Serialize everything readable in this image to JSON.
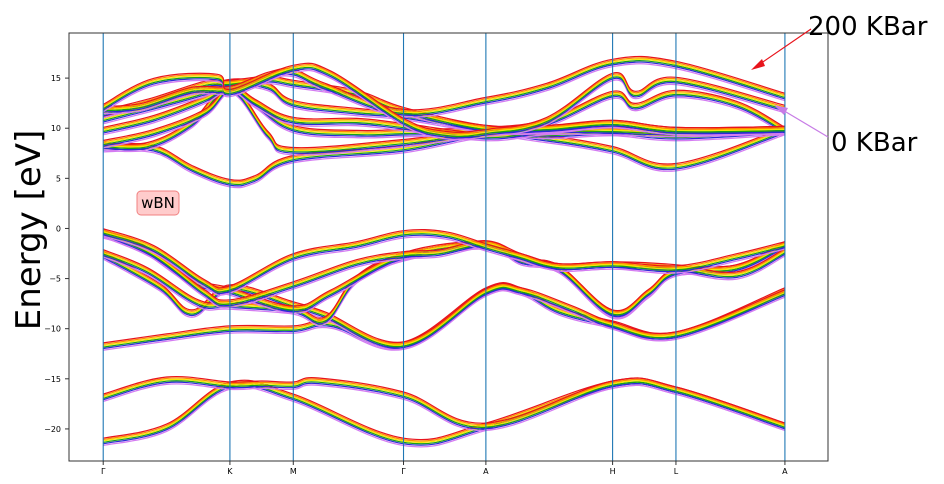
{
  "chart_data": {
    "type": "line",
    "title": "",
    "ylabel": "Energy [eV]",
    "xlabel": "",
    "ylim": [
      -23.2,
      19.5
    ],
    "xlim": [
      -0.27,
      5.72
    ],
    "yticks": [
      -20,
      -15,
      -10,
      -5,
      0,
      5,
      10,
      15
    ],
    "ytick_labels": [
      "−20",
      "−15",
      "−10",
      "−5",
      "0",
      "5",
      "10",
      "15"
    ],
    "xticks": [
      0,
      1,
      1.5,
      2.37,
      3.02,
      4.02,
      4.52,
      5.38
    ],
    "xtick_labels": [
      "Γ",
      "K",
      "M",
      "Γ",
      "A",
      "H",
      "L",
      "A"
    ],
    "vertical_lines_color": "#1f77b4",
    "inset_label": "wBN",
    "annotations": [
      {
        "text": "200 KBar",
        "color": "#e8141c"
      },
      {
        "text": "0 KBar",
        "color": "#c77ce6"
      }
    ],
    "series_colors": [
      "#d47cf2",
      "#2b2bd6",
      "#18a018",
      "#f2e800",
      "#ff8c00",
      "#e8141c"
    ],
    "series": [
      {
        "name": "0 KBar",
        "pressure_kbar": 0,
        "note": "lowest/outermost curve set"
      },
      {
        "name": "200 KBar",
        "pressure_kbar": 200,
        "note": "highest curve set"
      }
    ],
    "bands": [
      [
        [
          0,
          -21.2
        ],
        [
          0.5,
          -19.8
        ],
        [
          1,
          -15.6
        ],
        [
          1.5,
          -16.8
        ],
        [
          2.37,
          -21.2
        ],
        [
          3.02,
          -19.7
        ],
        [
          4.02,
          -15.5
        ],
        [
          4.52,
          -16.1
        ],
        [
          5.38,
          -19.7
        ]
      ],
      [
        [
          0,
          -16.8
        ],
        [
          0.5,
          -15.1
        ],
        [
          1,
          -15.6
        ],
        [
          1.25,
          -15.5
        ],
        [
          1.5,
          -15.6
        ],
        [
          1.7,
          -15.2
        ],
        [
          2.37,
          -16.6
        ],
        [
          3.02,
          -19.7
        ],
        [
          4.02,
          -15.5
        ],
        [
          4.52,
          -16.1
        ],
        [
          5.38,
          -19.7
        ]
      ],
      [
        [
          0,
          -11.7
        ],
        [
          0.5,
          -10.8
        ],
        [
          1,
          -10.0
        ],
        [
          1.5,
          -10.0
        ],
        [
          1.8,
          -9.5
        ],
        [
          2.37,
          -11.6
        ],
        [
          3.02,
          -6.2
        ],
        [
          3.3,
          -6.2
        ],
        [
          3.6,
          -8.2
        ],
        [
          4.02,
          -9.5
        ],
        [
          4.52,
          -10.6
        ],
        [
          5.38,
          -6.2
        ]
      ],
      [
        [
          0,
          -2.6
        ],
        [
          0.45,
          -5.8
        ],
        [
          0.7,
          -8.4
        ],
        [
          1,
          -5.9
        ],
        [
          1.5,
          -7.6
        ],
        [
          1.75,
          -8.6
        ],
        [
          2.37,
          -11.6
        ],
        [
          3.02,
          -6.3
        ],
        [
          3.3,
          -6.2
        ],
        [
          3.7,
          -8.0
        ],
        [
          4.02,
          -9.6
        ],
        [
          4.52,
          -10.6
        ],
        [
          5.38,
          -6.4
        ]
      ],
      [
        [
          0,
          -2.4
        ],
        [
          0.35,
          -4.2
        ],
        [
          0.75,
          -7.4
        ],
        [
          1,
          -7.6
        ],
        [
          1.5,
          -8.1
        ],
        [
          1.75,
          -9.1
        ],
        [
          2.0,
          -5.0
        ],
        [
          2.37,
          -2.8
        ],
        [
          3.02,
          -1.6
        ],
        [
          3.3,
          -3.2
        ],
        [
          3.6,
          -4.0
        ],
        [
          4.02,
          -8.5
        ],
        [
          4.3,
          -6.5
        ],
        [
          4.52,
          -4.3
        ],
        [
          5.0,
          -3.9
        ],
        [
          5.38,
          -1.6
        ]
      ],
      [
        [
          0,
          -0.5
        ],
        [
          0.3,
          -1.8
        ],
        [
          0.7,
          -5.2
        ],
        [
          1,
          -6.2
        ],
        [
          1.5,
          -8.0
        ],
        [
          1.8,
          -6.4
        ],
        [
          2.37,
          -2.7
        ],
        [
          3.02,
          -1.6
        ],
        [
          3.3,
          -3.2
        ],
        [
          3.6,
          -4.0
        ],
        [
          4.02,
          -8.4
        ],
        [
          4.3,
          -6.4
        ],
        [
          4.52,
          -4.3
        ],
        [
          5.0,
          -3.9
        ],
        [
          5.38,
          -1.6
        ]
      ],
      [
        [
          0,
          -0.4
        ],
        [
          0.4,
          -2.6
        ],
        [
          0.8,
          -6.4
        ],
        [
          1,
          -7.4
        ],
        [
          1.5,
          -5.6
        ],
        [
          2.0,
          -3.4
        ],
        [
          2.37,
          -2.6
        ],
        [
          2.65,
          -2.4
        ],
        [
          3.02,
          -1.5
        ],
        [
          3.3,
          -2.8
        ],
        [
          3.6,
          -3.8
        ],
        [
          4.02,
          -3.6
        ],
        [
          4.52,
          -3.9
        ],
        [
          5.0,
          -4.6
        ],
        [
          5.38,
          -2.3
        ]
      ],
      [
        [
          0,
          -0.3
        ],
        [
          0.4,
          -2.0
        ],
        [
          0.8,
          -5.4
        ],
        [
          1,
          -6.0
        ],
        [
          1.5,
          -2.8
        ],
        [
          2.0,
          -1.6
        ],
        [
          2.37,
          -0.5
        ],
        [
          2.7,
          -0.6
        ],
        [
          3.02,
          -1.8
        ],
        [
          3.3,
          -2.8
        ],
        [
          3.6,
          -3.8
        ],
        [
          4.02,
          -3.6
        ],
        [
          4.52,
          -4.0
        ],
        [
          5.0,
          -2.8
        ],
        [
          5.38,
          -1.6
        ]
      ],
      [
        [
          0,
          8.1
        ],
        [
          0.4,
          8.0
        ],
        [
          0.7,
          6.0
        ],
        [
          1,
          4.6
        ],
        [
          1.2,
          5.0
        ],
        [
          1.5,
          7.0
        ],
        [
          2.37,
          8.0
        ],
        [
          3.02,
          9.5
        ],
        [
          3.5,
          9.0
        ],
        [
          4.02,
          7.9
        ],
        [
          4.52,
          6.2
        ],
        [
          5.38,
          9.8
        ]
      ],
      [
        [
          0,
          8.3
        ],
        [
          0.35,
          8.3
        ],
        [
          0.7,
          10.5
        ],
        [
          1,
          14.0
        ],
        [
          1.3,
          9.4
        ],
        [
          1.5,
          7.8
        ],
        [
          2.37,
          8.6
        ],
        [
          3.02,
          9.6
        ],
        [
          3.5,
          9.4
        ],
        [
          4.02,
          9.7
        ],
        [
          4.52,
          9.2
        ],
        [
          5.38,
          9.8
        ]
      ],
      [
        [
          0,
          8.5
        ],
        [
          0.4,
          9.6
        ],
        [
          0.8,
          11.6
        ],
        [
          1,
          14.0
        ],
        [
          1.2,
          12.5
        ],
        [
          1.5,
          10.0
        ],
        [
          2.0,
          9.5
        ],
        [
          2.37,
          9.6
        ],
        [
          3.02,
          9.8
        ],
        [
          3.5,
          10.6
        ],
        [
          4.02,
          13.4
        ],
        [
          4.2,
          12.2
        ],
        [
          4.52,
          13.5
        ],
        [
          5.0,
          12.4
        ],
        [
          5.38,
          9.8
        ]
      ],
      [
        [
          0,
          9.8
        ],
        [
          0.4,
          11.0
        ],
        [
          0.8,
          12.9
        ],
        [
          1,
          14.2
        ],
        [
          1.2,
          12.6
        ],
        [
          1.5,
          10.8
        ],
        [
          2.0,
          10.7
        ],
        [
          2.37,
          10.2
        ],
        [
          3.02,
          9.2
        ],
        [
          3.5,
          9.8
        ],
        [
          4.02,
          9.8
        ],
        [
          4.52,
          9.6
        ],
        [
          5.38,
          9.9
        ]
      ],
      [
        [
          0,
          10.9
        ],
        [
          0.4,
          12.2
        ],
        [
          0.8,
          13.6
        ],
        [
          1,
          14.6
        ],
        [
          1.3,
          14.2
        ],
        [
          1.5,
          12.5
        ],
        [
          2.0,
          11.7
        ],
        [
          2.37,
          11.3
        ],
        [
          3.02,
          10.0
        ],
        [
          3.5,
          9.9
        ],
        [
          4.02,
          10.5
        ],
        [
          4.52,
          9.8
        ],
        [
          5.38,
          9.9
        ]
      ],
      [
        [
          0,
          11.5
        ],
        [
          0.4,
          12.8
        ],
        [
          0.8,
          14.4
        ],
        [
          1,
          14.5
        ],
        [
          1.3,
          14.9
        ],
        [
          1.5,
          14.5
        ],
        [
          2.0,
          13.5
        ],
        [
          2.37,
          11.8
        ],
        [
          3.02,
          10.0
        ],
        [
          3.5,
          10.0
        ],
        [
          4.02,
          10.5
        ],
        [
          4.52,
          9.8
        ],
        [
          5.38,
          9.9
        ]
      ],
      [
        [
          0,
          11.9
        ],
        [
          0.3,
          12.2
        ],
        [
          0.7,
          13.8
        ],
        [
          1,
          13.9
        ],
        [
          1.3,
          15.3
        ],
        [
          1.5,
          15.6
        ],
        [
          1.75,
          14.2
        ],
        [
          2.37,
          11.6
        ],
        [
          3.02,
          12.8
        ],
        [
          3.5,
          14.2
        ],
        [
          4.02,
          16.6
        ],
        [
          4.52,
          16.4
        ],
        [
          5.38,
          13.2
        ]
      ],
      [
        [
          0,
          12.1
        ],
        [
          0.4,
          14.7
        ],
        [
          0.9,
          15.1
        ],
        [
          1,
          13.6
        ],
        [
          1.5,
          16.0
        ],
        [
          1.8,
          15.4
        ],
        [
          2.37,
          10.7
        ],
        [
          2.7,
          9.4
        ],
        [
          3.02,
          9.6
        ],
        [
          3.5,
          10.8
        ],
        [
          4.02,
          15.2
        ],
        [
          4.2,
          13.4
        ],
        [
          4.52,
          14.8
        ],
        [
          5.38,
          12.0
        ]
      ]
    ]
  }
}
